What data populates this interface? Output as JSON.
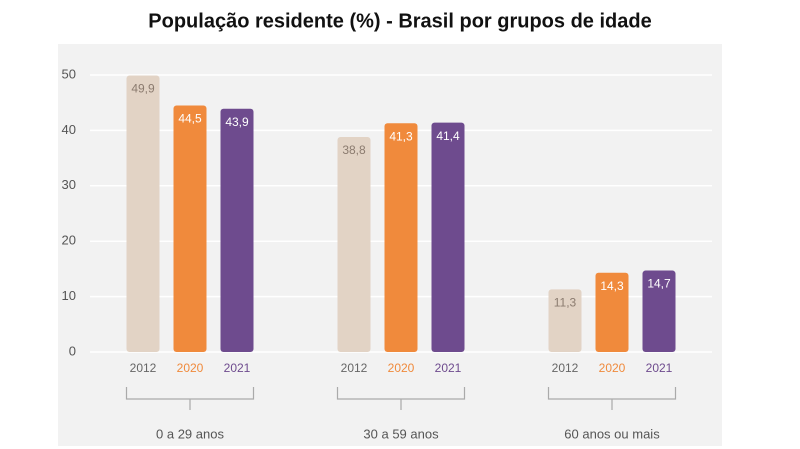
{
  "chart_data": {
    "type": "bar",
    "title": "População residente (%) - Brasil por grupos de idade",
    "categories": [
      "0 a 29 anos",
      "30 a 59 anos",
      "60 anos ou mais"
    ],
    "series": [
      {
        "name": "2012",
        "color": "#e2d3c5",
        "values": [
          49.9,
          38.8,
          11.3
        ],
        "value_labels": [
          "49,9",
          "38,8",
          "11,3"
        ]
      },
      {
        "name": "2020",
        "color": "#f08a3c",
        "values": [
          44.5,
          41.3,
          14.3
        ],
        "value_labels": [
          "44,5",
          "41,3",
          "14,3"
        ]
      },
      {
        "name": "2021",
        "color": "#6e4b8e",
        "values": [
          43.9,
          41.4,
          14.7
        ],
        "value_labels": [
          "43,9",
          "41,4",
          "14,7"
        ]
      }
    ],
    "ylim": [
      0,
      50
    ],
    "yticks": [
      0,
      10,
      20,
      30,
      40,
      50
    ],
    "grid": true
  }
}
